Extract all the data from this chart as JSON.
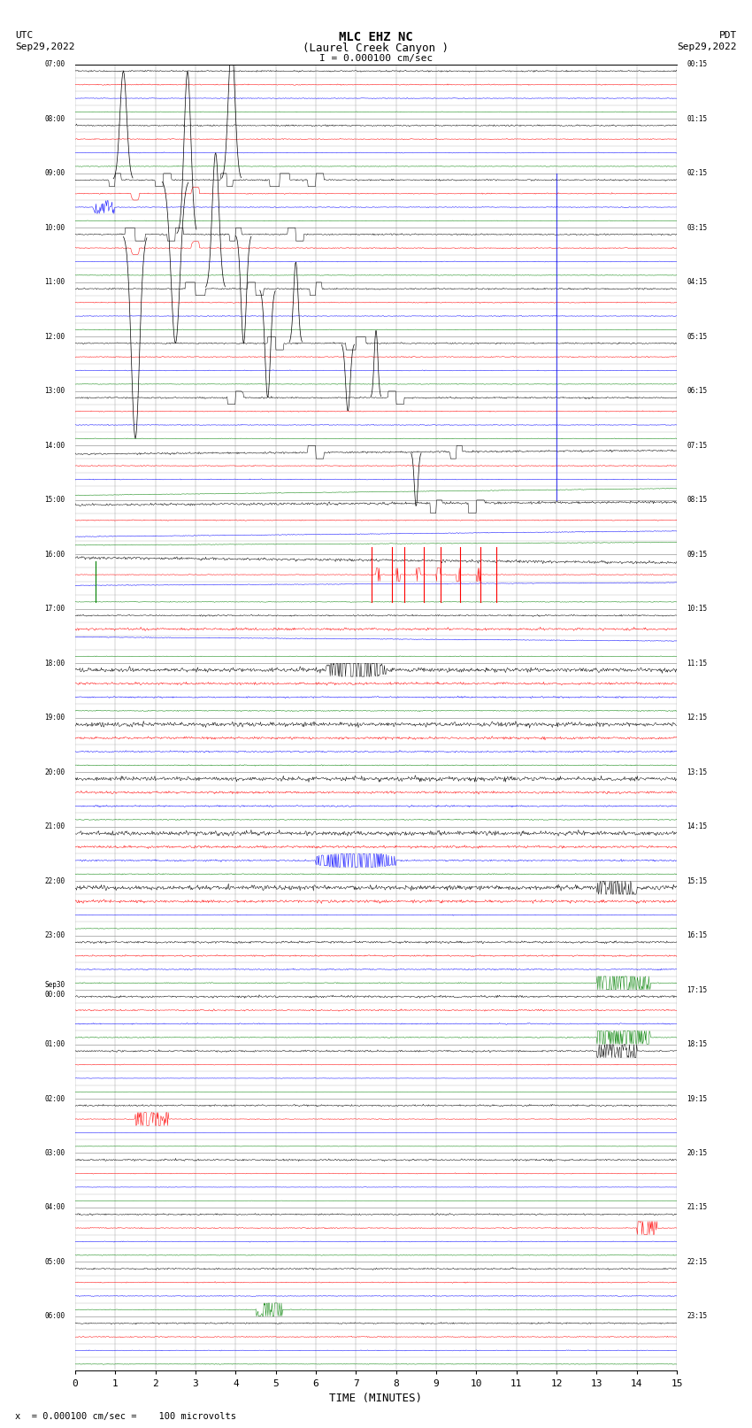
{
  "title_line1": "MLC EHZ NC",
  "title_line2": "(Laurel Creek Canyon )",
  "scale_text": "I = 0.000100 cm/sec",
  "left_header_line1": "UTC",
  "left_header_line2": "Sep29,2022",
  "right_header_line1": "PDT",
  "right_header_line2": "Sep29,2022",
  "bottom_note": "x  = 0.000100 cm/sec =    100 microvolts",
  "xlabel": "TIME (MINUTES)",
  "xlim": [
    0,
    15
  ],
  "xticks": [
    0,
    1,
    2,
    3,
    4,
    5,
    6,
    7,
    8,
    9,
    10,
    11,
    12,
    13,
    14,
    15
  ],
  "left_times": [
    "07:00",
    "08:00",
    "09:00",
    "10:00",
    "11:00",
    "12:00",
    "13:00",
    "14:00",
    "15:00",
    "16:00",
    "17:00",
    "18:00",
    "19:00",
    "20:00",
    "21:00",
    "22:00",
    "23:00",
    "Sep30\n00:00",
    "01:00",
    "02:00",
    "03:00",
    "04:00",
    "05:00",
    "06:00"
  ],
  "right_times": [
    "00:15",
    "01:15",
    "02:15",
    "03:15",
    "04:15",
    "05:15",
    "06:15",
    "07:15",
    "08:15",
    "09:15",
    "10:15",
    "11:15",
    "12:15",
    "13:15",
    "14:15",
    "15:15",
    "16:15",
    "17:15",
    "18:15",
    "19:15",
    "20:15",
    "21:15",
    "22:15",
    "23:15"
  ],
  "n_hour_rows": 24,
  "traces_per_hour": 4,
  "colors": [
    "black",
    "red",
    "blue",
    "green"
  ],
  "bg_color": "white",
  "grid_color": "#999999",
  "figsize": [
    8.5,
    16.13
  ],
  "dpi": 100
}
